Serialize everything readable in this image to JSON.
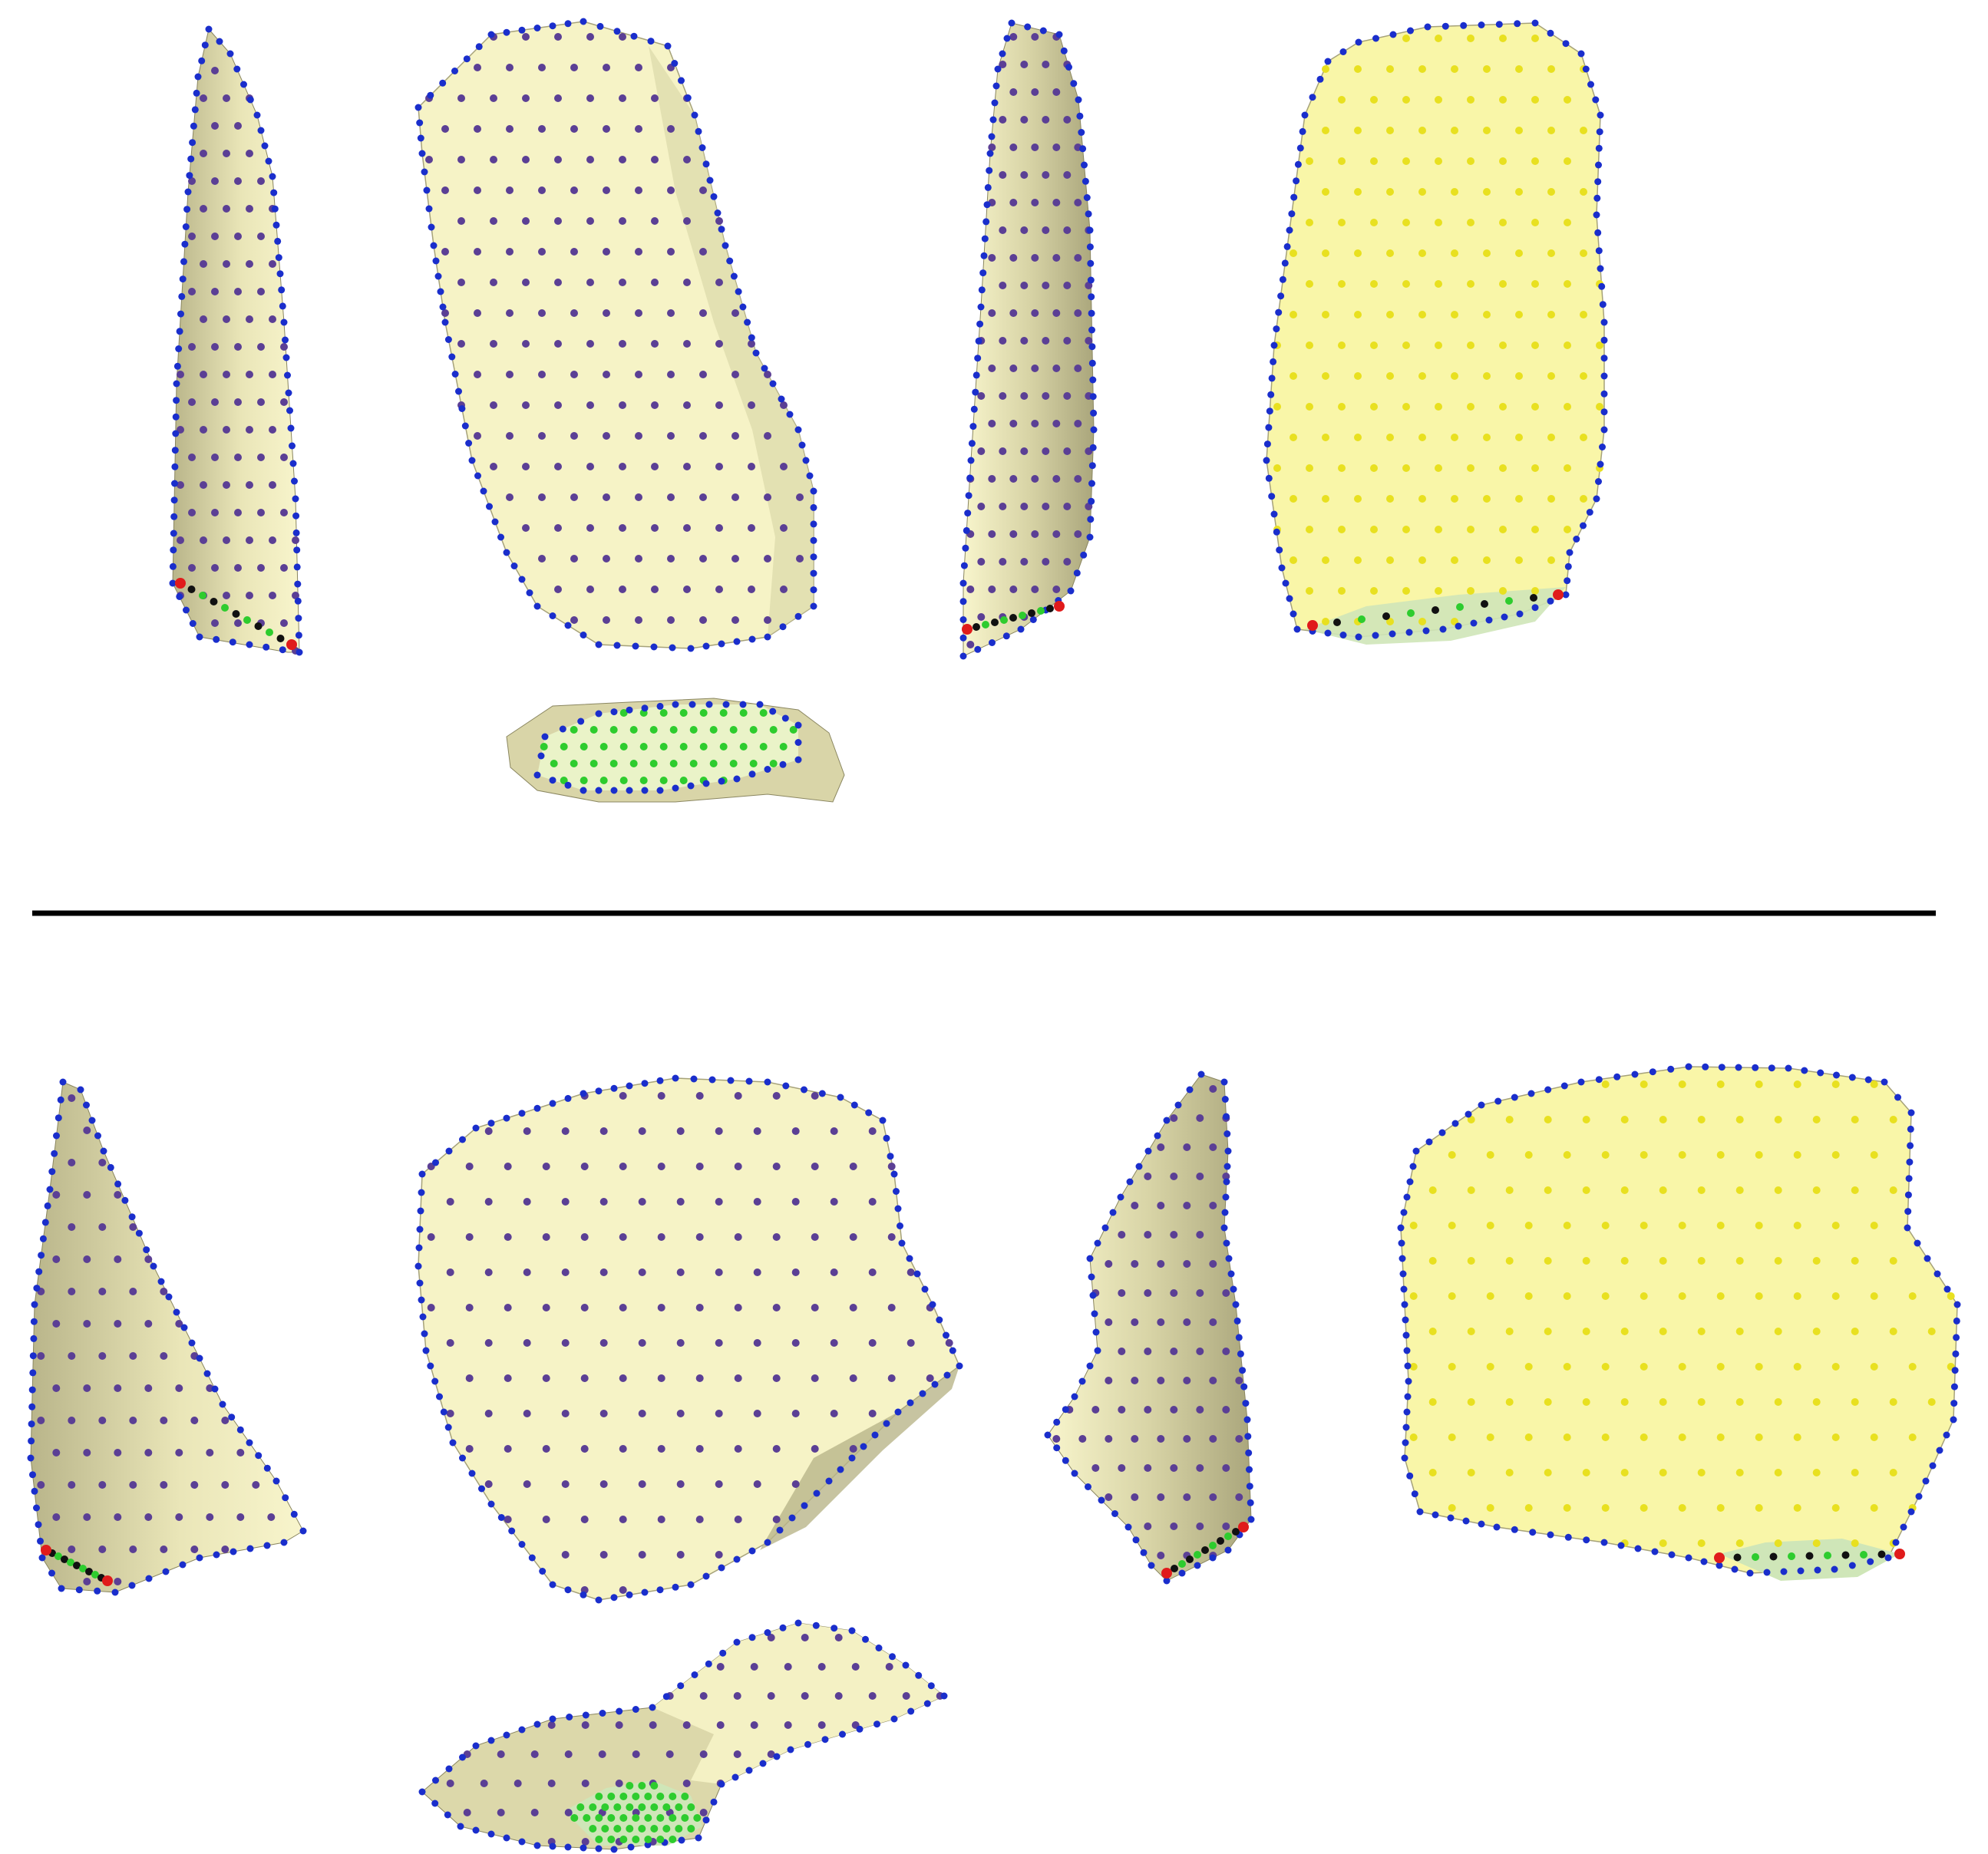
{
  "figure": {
    "description_text": "",
    "landmark_colors": {
      "surface_fill": "#f6f3c6",
      "surface_shade": "#c9c59a",
      "dorsal_semilandmarks": "#5b3f95",
      "ventral_semilandmarks": "#e8e020",
      "outline_semilandmarks": "#1a2ecc",
      "platform_semilandmarks": "#2ecc2e",
      "platform_edge_black": "#111111",
      "platform_edge_orange": "#e87a1a",
      "fixed_landmarks": "#e01b1b"
    },
    "panels": [
      {
        "id": "top",
        "views": [
          "lateral-left",
          "dorsal",
          "lateral-right",
          "ventral",
          "platform"
        ]
      },
      {
        "id": "bottom",
        "views": [
          "lateral-left",
          "dorsal",
          "lateral-right",
          "ventral",
          "platform"
        ]
      }
    ]
  }
}
